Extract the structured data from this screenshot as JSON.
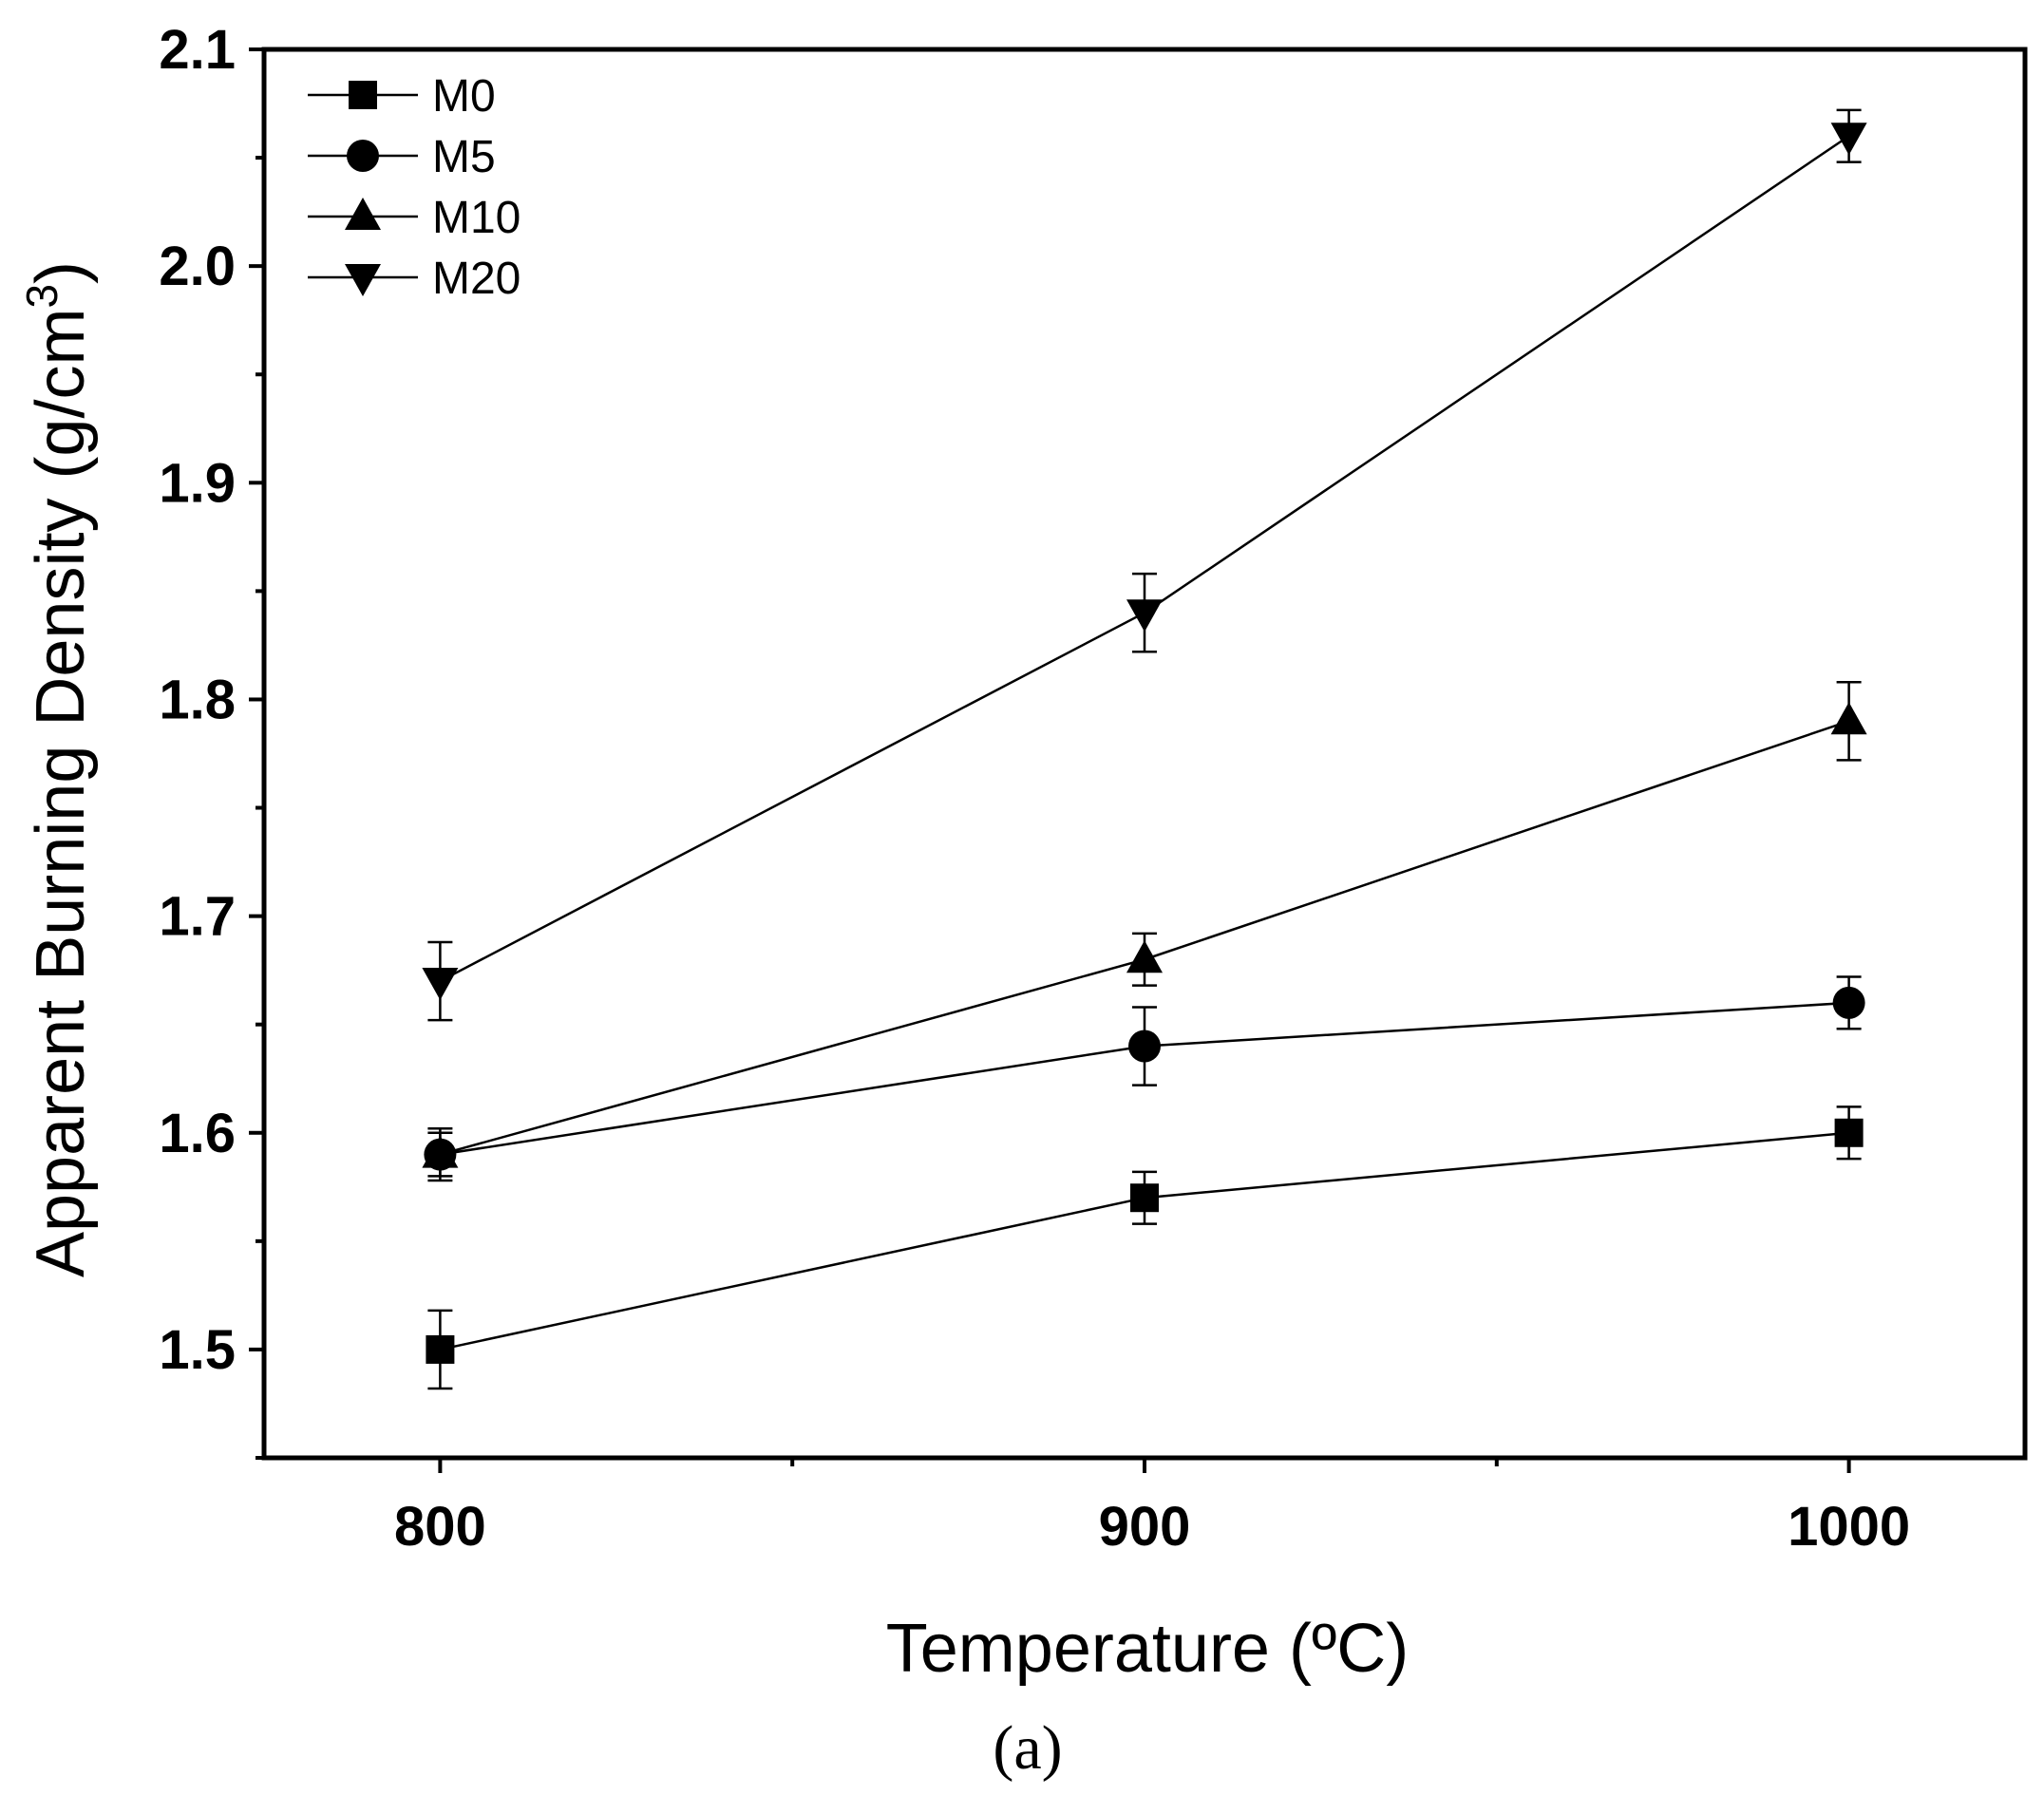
{
  "chart_data": {
    "type": "line",
    "title": "",
    "xlabel": "Temperature (ºC)",
    "ylabel": "Apparent Burning Density (g/cm",
    "ylabel_superscript": "3",
    "ylabel_suffix": ")",
    "x": [
      800,
      900,
      1000
    ],
    "xticks": [
      "800",
      "900",
      "1000"
    ],
    "xlim": [
      775,
      1025
    ],
    "ylim": [
      1.45,
      2.1
    ],
    "yticks": [
      "1.5",
      "1.6",
      "1.7",
      "1.8",
      "1.9",
      "2.0",
      "2.1"
    ],
    "legend_position": "top-left",
    "series": [
      {
        "name": "M0",
        "marker": "square",
        "values": [
          1.5,
          1.57,
          1.6
        ],
        "errors": [
          0.018,
          0.012,
          0.012
        ]
      },
      {
        "name": "M5",
        "marker": "circle",
        "values": [
          1.59,
          1.64,
          1.66
        ],
        "errors": [
          0.012,
          0.018,
          0.012
        ]
      },
      {
        "name": "M10",
        "marker": "triangle-up",
        "values": [
          1.59,
          1.68,
          1.79
        ],
        "errors": [
          0.01,
          0.012,
          0.018
        ]
      },
      {
        "name": "M20",
        "marker": "triangle-down",
        "values": [
          1.67,
          1.84,
          2.06
        ],
        "errors": [
          0.018,
          0.018,
          0.012
        ]
      }
    ]
  },
  "caption": "(a)"
}
